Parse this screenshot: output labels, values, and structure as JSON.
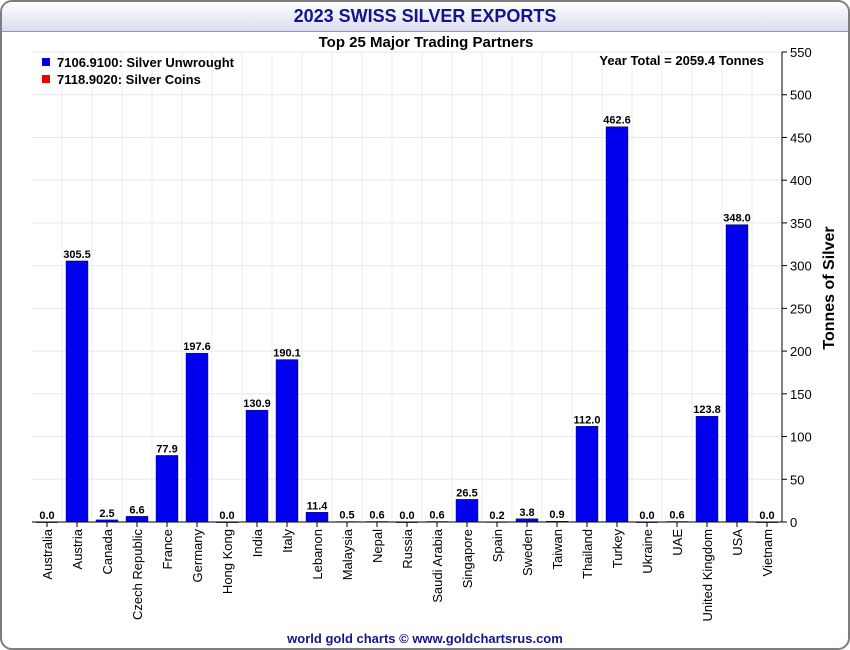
{
  "window": {
    "title": "2023 SWISS SILVER EXPORTS",
    "footer": "world gold charts © www.goldchartsrus.com"
  },
  "chart_data": {
    "type": "bar",
    "title": "2023 SWISS SILVER EXPORTS",
    "subtitle": "Top 25 Major Trading Partners",
    "annotation": "Year Total = 2059.4 Tonnes",
    "ylabel": "Tonnes of Silver",
    "xlabel": "",
    "ylim": [
      0,
      550
    ],
    "ytick_step": 50,
    "grid": true,
    "legend_position": "top-left",
    "categories": [
      "Australia",
      "Austria",
      "Canada",
      "Czech Republic",
      "France",
      "Germany",
      "Hong Kong",
      "India",
      "Italy",
      "Lebanon",
      "Malaysia",
      "Nepal",
      "Russia",
      "Saudi Arabia",
      "Singapore",
      "Spain",
      "Sweden",
      "Taiwan",
      "Thailand",
      "Turkey",
      "Ukraine",
      "UAE",
      "United Kingdom",
      "USA",
      "Vietnam"
    ],
    "series": [
      {
        "name": "7106.9100: Silver Unwrought",
        "color": "#0000ee",
        "values": [
          0.0,
          305.5,
          2.5,
          6.6,
          77.9,
          197.6,
          0.0,
          130.9,
          190.1,
          11.4,
          0.5,
          0.6,
          0.0,
          0.6,
          26.5,
          0.2,
          3.8,
          0.9,
          112.0,
          462.6,
          0.0,
          0.6,
          123.8,
          348.0,
          0.0
        ],
        "labels": [
          "0.0",
          "305.5",
          "2.5",
          "6.6",
          "77.9",
          "197.6",
          "0.0",
          "130.9",
          "190.1",
          "11.4",
          "0.5",
          "0.6",
          "0.0",
          "0.6",
          "26.5",
          "0.2",
          "3.8",
          "0.9",
          "112.0",
          "462.6",
          "0.0",
          "0.6",
          "123.8",
          "348.0",
          "0.0"
        ]
      },
      {
        "name": "7118.9020: Silver Coins",
        "color": "#ee0000",
        "values": [
          0,
          0,
          0,
          0,
          0,
          0,
          0,
          0,
          0,
          0,
          0,
          0,
          0,
          0,
          0,
          0,
          0,
          0,
          0,
          0,
          0,
          0,
          0,
          0,
          0
        ]
      }
    ]
  }
}
